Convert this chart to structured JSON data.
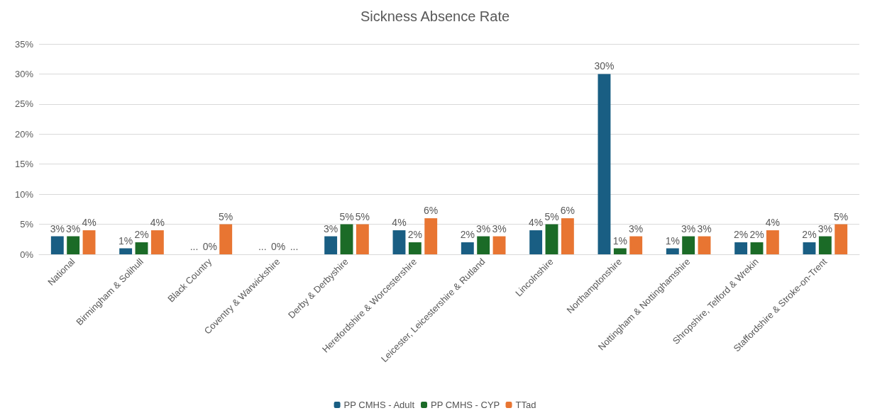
{
  "chart_data": {
    "type": "bar",
    "title": "Sickness Absence Rate",
    "categories": [
      "National",
      "Birmingham & Solihull",
      "Black Country",
      "Coventry & Warwickshire",
      "Derby & Derbyshire",
      "Herefordshire & Worcestershire",
      "Leicester, Leicestershire & Rutland",
      "Lincolnshire",
      "Northamptonshire",
      "Nottingham & Nottinghamshire",
      "Shropshire, Telford & Wrekin",
      "Staffordshire & Stroke-on-Trent"
    ],
    "series": [
      {
        "name": "PP CMHS - Adult",
        "color": "#195e83",
        "values": [
          3,
          1,
          null,
          null,
          3,
          4,
          2,
          4,
          30,
          1,
          2,
          2
        ],
        "value_labels": [
          "3%",
          "1%",
          "...",
          "...",
          "3%",
          "4%",
          "2%",
          "4%",
          "30%",
          "1%",
          "2%",
          "2%"
        ]
      },
      {
        "name": "PP CMHS - CYP",
        "color": "#1b6b27",
        "values": [
          3,
          2,
          0,
          0,
          5,
          2,
          3,
          5,
          1,
          3,
          2,
          3
        ],
        "value_labels": [
          "3%",
          "2%",
          "0%",
          "0%",
          "5%",
          "2%",
          "3%",
          "5%",
          "1%",
          "3%",
          "2%",
          "3%"
        ]
      },
      {
        "name": "TTad",
        "color": "#e87532",
        "values": [
          4,
          4,
          5,
          null,
          5,
          6,
          3,
          6,
          3,
          3,
          4,
          5
        ],
        "value_labels": [
          "4%",
          "4%",
          "5%",
          "...",
          "5%",
          "6%",
          "3%",
          "6%",
          "3%",
          "3%",
          "4%",
          "5%"
        ]
      }
    ],
    "ylim": [
      0,
      35
    ],
    "yticks": [
      {
        "value": 0,
        "label": "0%"
      },
      {
        "value": 5,
        "label": "5%"
      },
      {
        "value": 10,
        "label": "10%"
      },
      {
        "value": 15,
        "label": "15%"
      },
      {
        "value": 20,
        "label": "20%"
      },
      {
        "value": 25,
        "label": "25%"
      },
      {
        "value": 30,
        "label": "30%"
      },
      {
        "value": 35,
        "label": "35%"
      }
    ],
    "grid": "y",
    "legend": "bottom"
  }
}
